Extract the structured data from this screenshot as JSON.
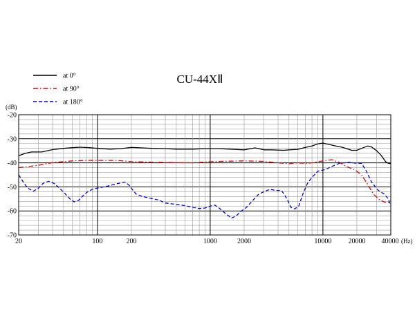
{
  "chart_data": {
    "type": "line",
    "title": "CU-44XⅡ",
    "xlabel": "(Hz)",
    "ylabel": "(dB)",
    "xscale": "log",
    "xlim": [
      20,
      40000
    ],
    "ylim": [
      -70,
      -20
    ],
    "grid": true,
    "legend_position": "top-left",
    "x_ticks": [
      20,
      100,
      200,
      1000,
      2000,
      10000,
      20000,
      40000
    ],
    "x_tick_labels": [
      "20",
      "100",
      "200",
      "1000",
      "2000",
      "10000",
      "20000",
      "40000"
    ],
    "y_ticks": [
      -20,
      -30,
      -40,
      -50,
      -60,
      -70
    ],
    "series": [
      {
        "name": "at 0°",
        "color": "#000000",
        "style": "solid",
        "points": [
          [
            20,
            -37
          ],
          [
            23,
            -36
          ],
          [
            26,
            -35.5
          ],
          [
            32,
            -35.5
          ],
          [
            40,
            -34.5
          ],
          [
            50,
            -34
          ],
          [
            60,
            -33.7
          ],
          [
            70,
            -33.5
          ],
          [
            85,
            -33.7
          ],
          [
            100,
            -34
          ],
          [
            130,
            -34.3
          ],
          [
            160,
            -34.1
          ],
          [
            200,
            -33.6
          ],
          [
            250,
            -33.8
          ],
          [
            300,
            -34
          ],
          [
            400,
            -34.1
          ],
          [
            500,
            -34.3
          ],
          [
            700,
            -34.3
          ],
          [
            900,
            -34.1
          ],
          [
            1200,
            -34.1
          ],
          [
            1500,
            -34.3
          ],
          [
            2000,
            -34.6
          ],
          [
            2500,
            -33.8
          ],
          [
            3000,
            -34.6
          ],
          [
            3500,
            -34.6
          ],
          [
            4500,
            -34.8
          ],
          [
            5000,
            -34.6
          ],
          [
            6000,
            -34.4
          ],
          [
            7000,
            -33.6
          ],
          [
            8000,
            -33
          ],
          [
            9000,
            -32.1
          ],
          [
            10000,
            -31.8
          ],
          [
            11000,
            -32.2
          ],
          [
            13000,
            -33
          ],
          [
            15000,
            -33.6
          ],
          [
            18000,
            -34.8
          ],
          [
            20000,
            -34.8
          ],
          [
            22000,
            -34
          ],
          [
            25000,
            -33
          ],
          [
            27000,
            -33.4
          ],
          [
            30000,
            -35
          ],
          [
            33000,
            -37
          ],
          [
            36000,
            -39.5
          ],
          [
            38000,
            -40.2
          ],
          [
            40000,
            -40.3
          ]
        ]
      },
      {
        "name": "at 90°",
        "color": "#dd0000",
        "style": "dashdot",
        "points": [
          [
            20,
            -42
          ],
          [
            30,
            -41
          ],
          [
            40,
            -39.9
          ],
          [
            50,
            -39.5
          ],
          [
            60,
            -39.2
          ],
          [
            80,
            -39
          ],
          [
            100,
            -39
          ],
          [
            150,
            -39
          ],
          [
            200,
            -39.5
          ],
          [
            300,
            -39.7
          ],
          [
            500,
            -39.9
          ],
          [
            700,
            -40
          ],
          [
            1000,
            -39.5
          ],
          [
            1500,
            -39.3
          ],
          [
            2000,
            -39.2
          ],
          [
            3000,
            -39.4
          ],
          [
            4000,
            -40
          ],
          [
            5000,
            -40.4
          ],
          [
            6000,
            -40
          ],
          [
            7000,
            -40.3
          ],
          [
            8000,
            -40
          ],
          [
            10000,
            -39.2
          ],
          [
            12000,
            -38.7
          ],
          [
            14000,
            -39.8
          ],
          [
            16000,
            -41.5
          ],
          [
            19000,
            -42.8
          ],
          [
            22000,
            -45
          ],
          [
            25000,
            -49
          ],
          [
            28000,
            -53
          ],
          [
            32000,
            -55.5
          ],
          [
            36000,
            -56.5
          ],
          [
            38000,
            -56.5
          ],
          [
            40000,
            -55.5
          ]
        ]
      },
      {
        "name": "at 180°",
        "color": "#0000dd",
        "style": "dashed",
        "points": [
          [
            20,
            -45
          ],
          [
            22,
            -48
          ],
          [
            24,
            -50.5
          ],
          [
            27,
            -51.8
          ],
          [
            30,
            -50.5
          ],
          [
            33,
            -48.5
          ],
          [
            37,
            -47.7
          ],
          [
            41,
            -48.5
          ],
          [
            46,
            -50.5
          ],
          [
            52,
            -53
          ],
          [
            57,
            -55
          ],
          [
            62,
            -56.2
          ],
          [
            68,
            -55.6
          ],
          [
            75,
            -53.5
          ],
          [
            82,
            -52
          ],
          [
            90,
            -51
          ],
          [
            100,
            -50.5
          ],
          [
            120,
            -49.8
          ],
          [
            140,
            -49
          ],
          [
            155,
            -48.5
          ],
          [
            175,
            -48
          ],
          [
            190,
            -49.2
          ],
          [
            205,
            -51.2
          ],
          [
            220,
            -53
          ],
          [
            250,
            -54
          ],
          [
            300,
            -54.8
          ],
          [
            350,
            -55.5
          ],
          [
            400,
            -56.7
          ],
          [
            500,
            -57.3
          ],
          [
            600,
            -57.8
          ],
          [
            700,
            -58.5
          ],
          [
            800,
            -59
          ],
          [
            900,
            -58.8
          ],
          [
            1000,
            -58
          ],
          [
            1100,
            -57.6
          ],
          [
            1200,
            -58.8
          ],
          [
            1400,
            -61.5
          ],
          [
            1550,
            -63
          ],
          [
            1700,
            -62
          ],
          [
            1900,
            -60
          ],
          [
            2100,
            -58.5
          ],
          [
            2400,
            -55.5
          ],
          [
            2700,
            -53
          ],
          [
            3000,
            -52
          ],
          [
            3400,
            -51
          ],
          [
            3800,
            -51.5
          ],
          [
            4300,
            -51.5
          ],
          [
            4800,
            -55
          ],
          [
            5200,
            -58.5
          ],
          [
            5600,
            -59.2
          ],
          [
            6100,
            -58
          ],
          [
            6700,
            -52.5
          ],
          [
            7300,
            -48.5
          ],
          [
            8000,
            -46
          ],
          [
            9000,
            -43.5
          ],
          [
            10500,
            -42.8
          ],
          [
            12000,
            -41.5
          ],
          [
            14000,
            -40.2
          ],
          [
            17000,
            -39.8
          ],
          [
            20000,
            -40.2
          ],
          [
            22000,
            -40.2
          ],
          [
            24000,
            -43
          ],
          [
            27000,
            -48
          ],
          [
            31000,
            -51.5
          ],
          [
            35000,
            -53
          ],
          [
            38000,
            -55
          ],
          [
            40000,
            -58
          ]
        ]
      }
    ]
  }
}
